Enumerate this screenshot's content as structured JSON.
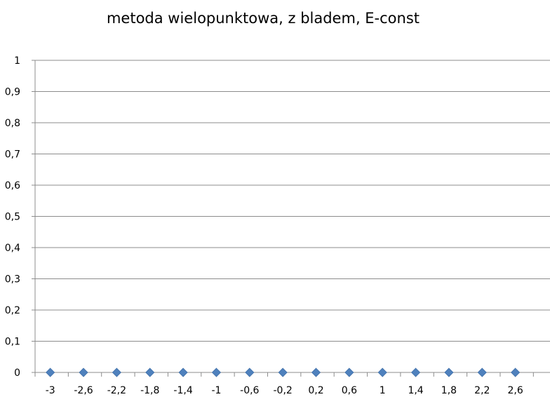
{
  "chart_data": {
    "type": "scatter",
    "title": "metoda wielopunktowa, z bladem, E-const",
    "xlabel": "",
    "ylabel": "",
    "categories": [
      "-3",
      "-2,6",
      "-2,2",
      "-1,8",
      "-1,4",
      "-1",
      "-0,6",
      "-0,2",
      "0,2",
      "0,6",
      "1",
      "1,4",
      "1,8",
      "2,2",
      "2,6"
    ],
    "x": [
      -3,
      -2.6,
      -2.2,
      -1.8,
      -1.4,
      -1,
      -0.6,
      -0.2,
      0.2,
      0.6,
      1,
      1.4,
      1.8,
      2.2,
      2.6
    ],
    "series": [
      {
        "values": [
          0,
          0,
          0,
          0,
          0,
          0,
          0,
          0,
          0,
          0,
          0,
          0,
          0,
          0,
          0
        ],
        "color": "#4F81BD",
        "marker": "diamond"
      }
    ],
    "ylim": [
      0,
      1
    ],
    "yticks": [
      "0",
      "0,1",
      "0,2",
      "0,3",
      "0,4",
      "0,5",
      "0,6",
      "0,7",
      "0,8",
      "0,9",
      "1"
    ],
    "grid": true,
    "legend": "none"
  }
}
